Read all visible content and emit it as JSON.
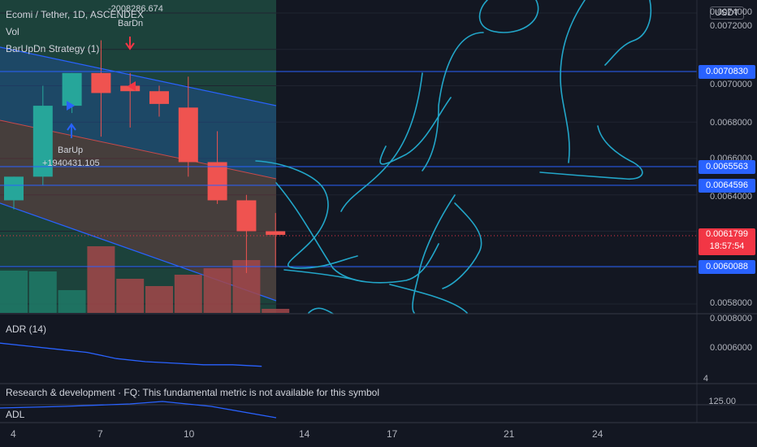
{
  "header": {
    "symbol_line": "Ecomi / Tether, 1D, ASCENDEX",
    "vol_label": "Vol",
    "strategy_label": "BarUpDn Strategy (1)",
    "currency_button": "USDT"
  },
  "annotations": {
    "bar_dn_label": "BarDn",
    "bar_dn_value": "-2008286.674",
    "bar_up_label": "BarUp",
    "bar_up_value": "+1940431.105"
  },
  "price_axis": {
    "ticks": [
      "0.0074000",
      "0.0072000",
      "0.0070000",
      "0.0068000",
      "0.0066000",
      "0.0064000",
      "0.0058000"
    ],
    "tags": [
      {
        "text": "0.0070830",
        "color": "#2962ff"
      },
      {
        "text": "0.0065563",
        "color": "#2962ff"
      },
      {
        "text": "0.0064596",
        "color": "#2962ff"
      },
      {
        "text": "0.0060088",
        "color": "#2962ff"
      }
    ],
    "last_price": "0.0061799",
    "countdown": "18:57:54",
    "last_color": "#f23645"
  },
  "adr_pane": {
    "label": "ADR (14)",
    "ticks": [
      "0.0008000",
      "0.0006000",
      "4"
    ]
  },
  "research_pane": {
    "label": "Research & development · FQ: This fundamental metric is not available for this symbol"
  },
  "adl_pane": {
    "label": "ADL",
    "tick": "125.00"
  },
  "time_axis": {
    "labels": [
      "4",
      "7",
      "10",
      "14",
      "17",
      "21",
      "24"
    ]
  },
  "colors": {
    "up": "#26a69a",
    "down": "#ef5350",
    "channel_line": "#2962ff",
    "drawing": "#22a6c9"
  },
  "chart_data": {
    "type": "candlestick",
    "x": [
      "4",
      "5",
      "6",
      "7",
      "8",
      "9",
      "10",
      "11",
      "12",
      "13"
    ],
    "open": [
      0.00637,
      0.0065,
      0.00689,
      0.00707,
      0.007,
      0.00697,
      0.00688,
      0.00658,
      0.00637,
      0.0062
    ],
    "high": [
      0.0065,
      0.007,
      0.00707,
      0.00725,
      0.00707,
      0.007,
      0.00705,
      0.00675,
      0.0064,
      0.0063
    ],
    "low": [
      0.00632,
      0.00645,
      0.00685,
      0.00672,
      0.00677,
      0.00683,
      0.0065,
      0.00635,
      0.00597,
      0.006
    ],
    "close": [
      0.0065,
      0.00689,
      0.00707,
      0.00696,
      0.00697,
      0.0069,
      0.00658,
      0.00637,
      0.0062,
      0.00618
    ],
    "volume": [
      0.52,
      0.51,
      0.28,
      0.82,
      0.42,
      0.33,
      0.47,
      0.55,
      0.65,
      0.05
    ],
    "adr": [
      0.00072,
      0.0007,
      0.00068,
      0.00066,
      0.00062,
      0.0006,
      0.00059,
      0.00058,
      0.00058,
      0.00057
    ],
    "ylim": [
      0.00575,
      0.00755
    ]
  }
}
